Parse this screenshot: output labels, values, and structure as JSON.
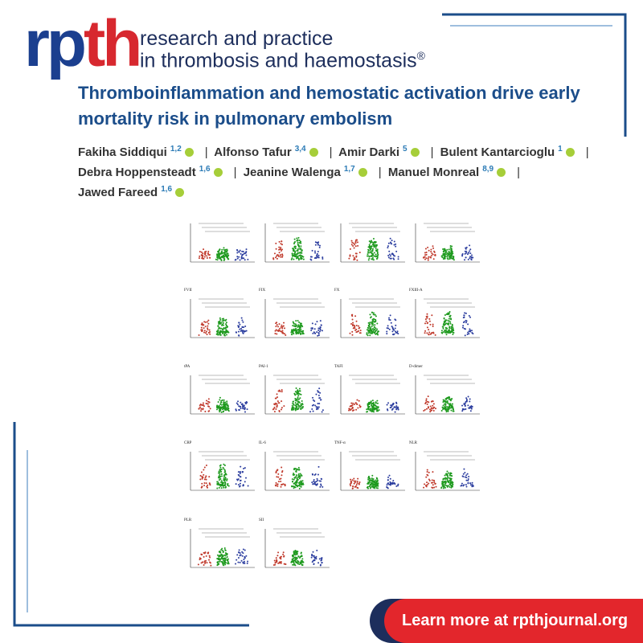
{
  "header": {
    "logo_part1": "rp",
    "logo_part2": "th",
    "journal_line1": "research and practice",
    "journal_line2": "in thrombosis and haemostasis",
    "registered": "®"
  },
  "title": "Thromboinflammation and hemostatic activation drive early mortality risk in pulmonary embolism",
  "separator": "|",
  "authors": [
    {
      "name": "Fakiha Siddiqui",
      "affil": "1,2"
    },
    {
      "name": "Alfonso Tafur",
      "affil": "3,4"
    },
    {
      "name": "Amir Darki",
      "affil": "5"
    },
    {
      "name": "Bulent Kantarcioglu",
      "affil": "1"
    },
    {
      "name": "Debra Hoppensteadt",
      "affil": "1,6"
    },
    {
      "name": "Jeanine Walenga",
      "affil": "1,7"
    },
    {
      "name": "Manuel Monreal",
      "affil": "8,9"
    },
    {
      "name": "Jawed Fareed",
      "affil": "1,6"
    }
  ],
  "figure": {
    "panel_titles": [
      "FVII",
      "FIX",
      "FX",
      "FXIII-A",
      "tPA",
      "PAI-1",
      "TAFI",
      "D-dimer",
      "CRP",
      "IL-6",
      "TNF-α",
      "NLR",
      "PLR",
      "SII"
    ]
  },
  "button": "Learn more at rpthjournal.org"
}
